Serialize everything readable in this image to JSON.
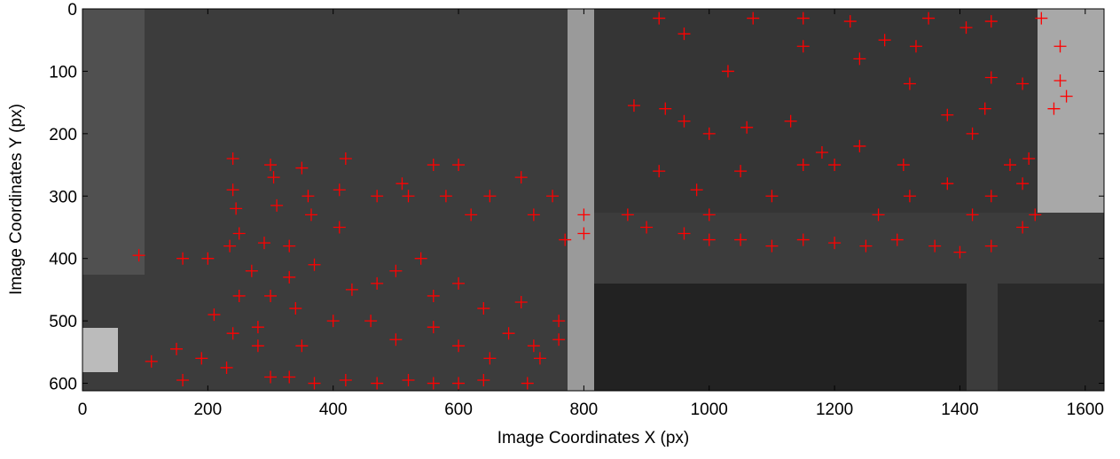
{
  "chart_data": {
    "type": "scatter",
    "x_label": "Image Coordinates X (px)",
    "y_label": "Image Coordinates Y (px)",
    "xlim": [
      0,
      1630
    ],
    "ylim": [
      0,
      612
    ],
    "y_reversed": true,
    "xticks": [
      0,
      200,
      400,
      600,
      800,
      1000,
      1200,
      1400,
      1600
    ],
    "yticks": [
      0,
      100,
      200,
      300,
      400,
      500,
      600
    ],
    "marker": "+",
    "color": "#ff0000",
    "x": [
      240,
      240,
      245,
      250,
      300,
      305,
      310,
      360,
      365,
      350,
      410,
      410,
      420,
      470,
      510,
      520,
      560,
      580,
      600,
      620,
      650,
      700,
      720,
      750,
      770,
      800,
      800,
      90,
      160,
      200,
      235,
      270,
      290,
      330,
      330,
      370,
      430,
      470,
      500,
      540,
      560,
      600,
      640,
      680,
      700,
      730,
      760,
      110,
      160,
      190,
      210,
      240,
      280,
      300,
      330,
      370,
      420,
      470,
      520,
      560,
      600,
      640,
      710,
      720,
      760,
      650,
      600,
      560,
      500,
      460,
      400,
      350,
      280,
      230,
      150,
      250,
      300,
      340,
      920,
      960,
      1070,
      1150,
      1225,
      1280,
      1350,
      1410,
      1450,
      1530,
      1560,
      1560,
      1500,
      1450,
      1380,
      1320,
      1310,
      1240,
      1180,
      1130,
      1060,
      1000,
      960,
      930,
      880,
      920,
      980,
      1050,
      1100,
      1150,
      1200,
      1270,
      1320,
      1380,
      1420,
      1450,
      1500,
      1520,
      1500,
      1450,
      1400,
      1360,
      1300,
      1250,
      1200,
      1150,
      1100,
      1050,
      1000,
      960,
      900,
      870,
      1000,
      1420,
      1480,
      1510,
      1440,
      1030,
      1150,
      1240,
      1330,
      1550,
      1570
    ],
    "values": [
      240,
      290,
      320,
      360,
      250,
      270,
      315,
      300,
      330,
      255,
      290,
      350,
      240,
      300,
      280,
      300,
      250,
      300,
      250,
      330,
      300,
      270,
      330,
      300,
      370,
      360,
      330,
      395,
      400,
      400,
      380,
      420,
      375,
      430,
      380,
      410,
      450,
      440,
      420,
      400,
      460,
      440,
      480,
      520,
      470,
      560,
      500,
      565,
      595,
      560,
      490,
      520,
      510,
      590,
      590,
      600,
      595,
      600,
      595,
      600,
      600,
      595,
      600,
      540,
      530,
      560,
      540,
      510,
      530,
      500,
      500,
      540,
      540,
      575,
      545,
      460,
      460,
      480,
      15,
      40,
      15,
      15,
      20,
      50,
      15,
      30,
      20,
      15,
      60,
      115,
      120,
      110,
      170,
      120,
      250,
      220,
      230,
      180,
      190,
      200,
      180,
      160,
      155,
      260,
      290,
      260,
      300,
      250,
      250,
      330,
      300,
      280,
      200,
      300,
      280,
      330,
      350,
      380,
      390,
      380,
      370,
      380,
      375,
      370,
      380,
      370,
      370,
      360,
      350,
      330,
      330,
      330,
      250,
      240,
      160,
      100,
      60,
      80,
      60,
      160,
      140
    ]
  }
}
